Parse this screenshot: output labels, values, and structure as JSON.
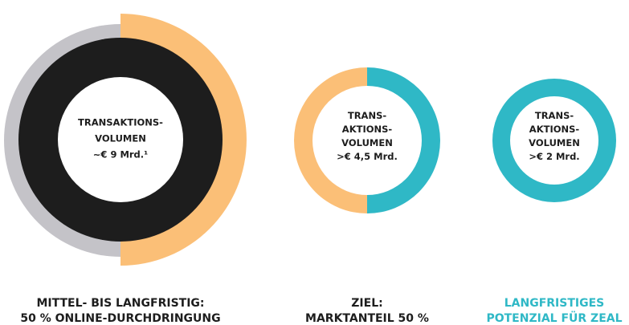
{
  "circles": [
    {
      "lines": [
        "TRANSAKTIONS-",
        "VOLUMEN",
        "~€ 9 Mrd.¹"
      ]
    },
    {
      "lines": [
        "TRANS-",
        "AKTIONS-",
        "VOLUMEN",
        ">€ 4,5 Mrd."
      ]
    },
    {
      "lines": [
        "TRANS-",
        "AKTIONS-",
        "VOLUMEN",
        ">€ 2 Mrd."
      ]
    }
  ],
  "captions": [
    {
      "lines": [
        "MITTEL- BIS LANGFRISTIG:",
        "50 % ONLINE-DURCHDRINGUNG"
      ]
    },
    {
      "lines": [
        "ZIEL:",
        "MARKTANTEIL 50 %"
      ]
    },
    {
      "lines": [
        "LANGFRISTIGES",
        "POTENZIAL FÜR ZEAL"
      ]
    }
  ]
}
